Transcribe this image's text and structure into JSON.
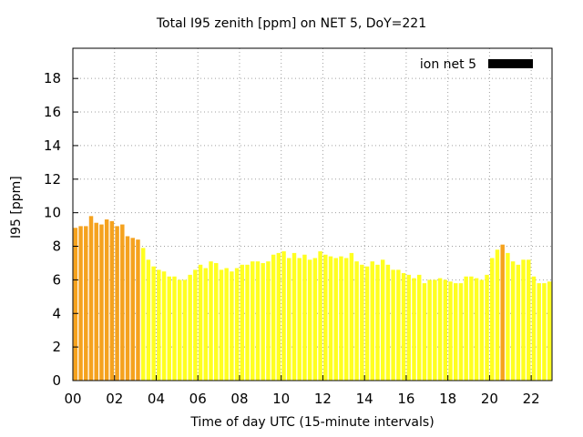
{
  "chart_data": {
    "type": "bar",
    "title": "Total I95 zenith [ppm] on NET 5, DoY=221",
    "xlabel": "Time of day UTC (15-minute intervals)",
    "ylabel": "I95 [ppm]",
    "ylim": [
      0,
      19.8
    ],
    "yticks": [
      "0",
      "2",
      "4",
      "6",
      "8",
      "10",
      "12",
      "14",
      "16",
      "18"
    ],
    "xticks": [
      "00",
      "02",
      "04",
      "06",
      "08",
      "10",
      "12",
      "14",
      "16",
      "18",
      "20",
      "22"
    ],
    "grid": true,
    "legend_position": "top-right",
    "series": [
      {
        "name": "ion net 5",
        "color": "#000000",
        "values": [
          9.1,
          9.2,
          9.2,
          9.8,
          9.4,
          9.3,
          9.6,
          9.5,
          9.2,
          9.3,
          8.6,
          8.5,
          8.4,
          7.9,
          7.2,
          6.8,
          6.6,
          6.5,
          6.2,
          6.2,
          6.0,
          6.0,
          6.3,
          6.6,
          6.9,
          6.7,
          7.1,
          7.0,
          6.6,
          6.7,
          6.5,
          6.7,
          6.9,
          6.9,
          7.1,
          7.1,
          7.0,
          7.1,
          7.5,
          7.6,
          7.7,
          7.3,
          7.6,
          7.3,
          7.5,
          7.2,
          7.3,
          7.7,
          7.5,
          7.4,
          7.3,
          7.4,
          7.3,
          7.6,
          7.1,
          6.9,
          6.8,
          7.1,
          6.9,
          7.2,
          6.9,
          6.6,
          6.6,
          6.4,
          6.3,
          6.1,
          6.3,
          5.8,
          6.0,
          6.0,
          6.1,
          6.0,
          5.9,
          5.8,
          5.8,
          6.2,
          6.2,
          6.1,
          6.0,
          6.3,
          7.3,
          7.8,
          8.1,
          7.6,
          7.1,
          6.9,
          7.2,
          7.2,
          6.2,
          5.8,
          5.8,
          5.9
        ]
      }
    ],
    "highlight_color": "#f5a21e",
    "bar_color": "#ffff20",
    "highlighted_indices": [
      0,
      1,
      2,
      3,
      4,
      5,
      6,
      7,
      8,
      9,
      10,
      11,
      12,
      82
    ]
  }
}
